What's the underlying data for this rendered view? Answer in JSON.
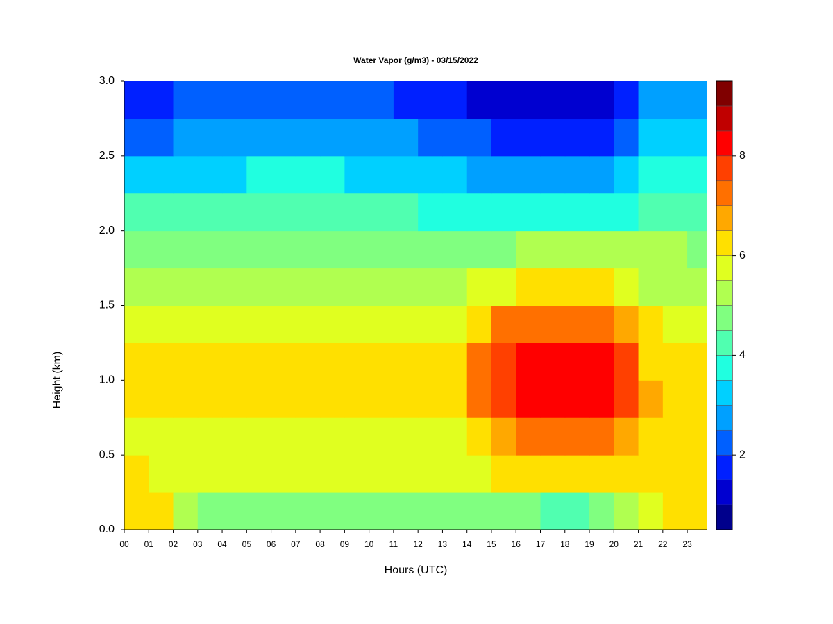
{
  "chart_data": {
    "type": "heatmap",
    "title": "Water Vapor (g/m3) - 03/15/2022",
    "xlabel": "Hours (UTC)",
    "ylabel": "Height (km)",
    "x": [
      0,
      1,
      2,
      3,
      4,
      5,
      6,
      7,
      8,
      9,
      10,
      11,
      12,
      13,
      14,
      15,
      16,
      17,
      18,
      19,
      20,
      21,
      22,
      23
    ],
    "y": [
      0,
      0.25,
      0.5,
      0.75,
      1,
      1.25,
      1.5,
      1.75,
      2,
      2.25,
      2.5,
      2.75
    ],
    "z": [
      [
        6.0,
        6.0,
        5.2,
        4.8,
        4.8,
        4.8,
        4.7,
        4.7,
        4.8,
        4.8,
        4.8,
        4.8,
        4.8,
        4.7,
        4.6,
        4.5,
        4.5,
        4.4,
        4.4,
        4.9,
        5.0,
        5.8,
        6.0,
        6.0
      ],
      [
        6.0,
        5.8,
        5.5,
        5.5,
        5.6,
        5.8,
        5.7,
        5.6,
        5.6,
        5.5,
        5.5,
        5.5,
        5.6,
        5.7,
        5.9,
        6.0,
        6.0,
        6.0,
        6.0,
        6.1,
        6.0,
        6.0,
        6.0,
        6.0
      ],
      [
        5.8,
        5.7,
        5.6,
        5.6,
        5.6,
        5.7,
        5.6,
        5.6,
        5.6,
        5.6,
        5.6,
        5.6,
        5.7,
        5.8,
        6.2,
        6.8,
        7.0,
        7.0,
        7.0,
        7.0,
        6.5,
        6.2,
        6.0,
        6.0
      ],
      [
        6.3,
        6.4,
        6.3,
        6.2,
        6.2,
        6.2,
        6.3,
        6.2,
        6.2,
        6.2,
        6.1,
        6.1,
        6.2,
        6.3,
        7.2,
        7.8,
        8.2,
        8.4,
        8.3,
        8.3,
        7.6,
        6.5,
        6.3,
        6.2
      ],
      [
        6.3,
        6.4,
        6.3,
        6.2,
        6.2,
        6.2,
        6.3,
        6.2,
        6.2,
        6.2,
        6.1,
        6.1,
        6.2,
        6.3,
        7.2,
        7.8,
        8.1,
        8.3,
        8.2,
        8.2,
        7.5,
        6.4,
        6.3,
        6.3
      ],
      [
        5.7,
        5.7,
        5.7,
        5.7,
        5.7,
        5.7,
        5.7,
        5.7,
        5.6,
        5.6,
        5.6,
        5.6,
        5.7,
        5.8,
        6.3,
        7.0,
        7.3,
        7.3,
        7.2,
        7.2,
        6.8,
        6.0,
        5.9,
        5.9
      ],
      [
        5.2,
        5.2,
        5.2,
        5.2,
        5.2,
        5.2,
        5.2,
        5.2,
        5.2,
        5.2,
        5.2,
        5.2,
        5.2,
        5.3,
        5.5,
        5.8,
        6.0,
        6.0,
        6.0,
        6.0,
        5.9,
        5.4,
        5.4,
        5.4
      ],
      [
        4.8,
        4.8,
        4.8,
        4.8,
        4.8,
        4.8,
        4.8,
        4.8,
        4.8,
        4.8,
        4.8,
        4.8,
        4.8,
        4.8,
        4.8,
        4.9,
        5.0,
        5.0,
        5.0,
        5.0,
        5.0,
        5.0,
        5.0,
        4.8
      ],
      [
        4.0,
        4.0,
        4.0,
        4.0,
        4.1,
        4.2,
        4.2,
        4.3,
        4.2,
        4.1,
        4.0,
        4.0,
        3.9,
        3.9,
        3.8,
        3.7,
        3.6,
        3.5,
        3.5,
        3.7,
        3.9,
        4.3,
        4.2,
        4.2
      ],
      [
        3.0,
        3.0,
        3.1,
        3.3,
        3.4,
        3.5,
        3.6,
        3.6,
        3.5,
        3.4,
        3.3,
        3.2,
        3.1,
        3.0,
        2.9,
        2.8,
        2.7,
        2.6,
        2.6,
        2.8,
        3.0,
        3.8,
        3.8,
        3.6
      ],
      [
        2.4,
        2.4,
        2.5,
        2.6,
        2.7,
        2.8,
        2.9,
        2.9,
        2.8,
        2.7,
        2.6,
        2.5,
        2.3,
        2.2,
        2.0,
        1.8,
        1.6,
        1.5,
        1.6,
        1.9,
        2.2,
        3.3,
        3.2,
        3.0
      ],
      [
        1.9,
        1.9,
        2.0,
        2.0,
        2.1,
        2.2,
        2.3,
        2.3,
        2.2,
        2.1,
        2.0,
        1.9,
        1.7,
        1.5,
        1.3,
        1.1,
        1.0,
        1.0,
        1.1,
        1.4,
        1.8,
        2.8,
        2.6,
        2.5
      ]
    ],
    "xlim": [
      0,
      23.82
    ],
    "ylim": [
      0,
      3
    ],
    "xticks": [
      {
        "value": 0,
        "label": "00"
      },
      {
        "value": 1,
        "label": "01"
      },
      {
        "value": 2,
        "label": "02"
      },
      {
        "value": 3,
        "label": "03"
      },
      {
        "value": 4,
        "label": "04"
      },
      {
        "value": 5,
        "label": "05"
      },
      {
        "value": 6,
        "label": "06"
      },
      {
        "value": 7,
        "label": "07"
      },
      {
        "value": 8,
        "label": "08"
      },
      {
        "value": 9,
        "label": "09"
      },
      10,
      11,
      12,
      13,
      14,
      15,
      16,
      17,
      18,
      19,
      20,
      21,
      22,
      23
    ],
    "yticks": [
      {
        "value": 0,
        "label": "0.0"
      },
      0.5,
      {
        "value": 1,
        "label": "1.0"
      },
      1.5,
      {
        "value": 2,
        "label": "2.0"
      },
      2.5,
      {
        "value": 3,
        "label": "3.0"
      }
    ],
    "levels": [
      0.5,
      1,
      1.5,
      2,
      2.5,
      3,
      3.5,
      4,
      4.5,
      5,
      5.5,
      6,
      6.5,
      7,
      7.5,
      8,
      8.5,
      9,
      9.5
    ],
    "colors": [
      "#00008c",
      "#0000d0",
      "#0020ff",
      "#0060ff",
      "#00a0ff",
      "#00d0ff",
      "#20ffe0",
      "#50ffb0",
      "#80ff80",
      "#b0ff50",
      "#e0ff20",
      "#ffe000",
      "#ffa800",
      "#ff7000",
      "#ff4000",
      "#ff0000",
      "#c00000",
      "#800000"
    ],
    "clim": [
      0.5,
      9.5
    ],
    "cticks": [
      2,
      4,
      6,
      8
    ]
  }
}
